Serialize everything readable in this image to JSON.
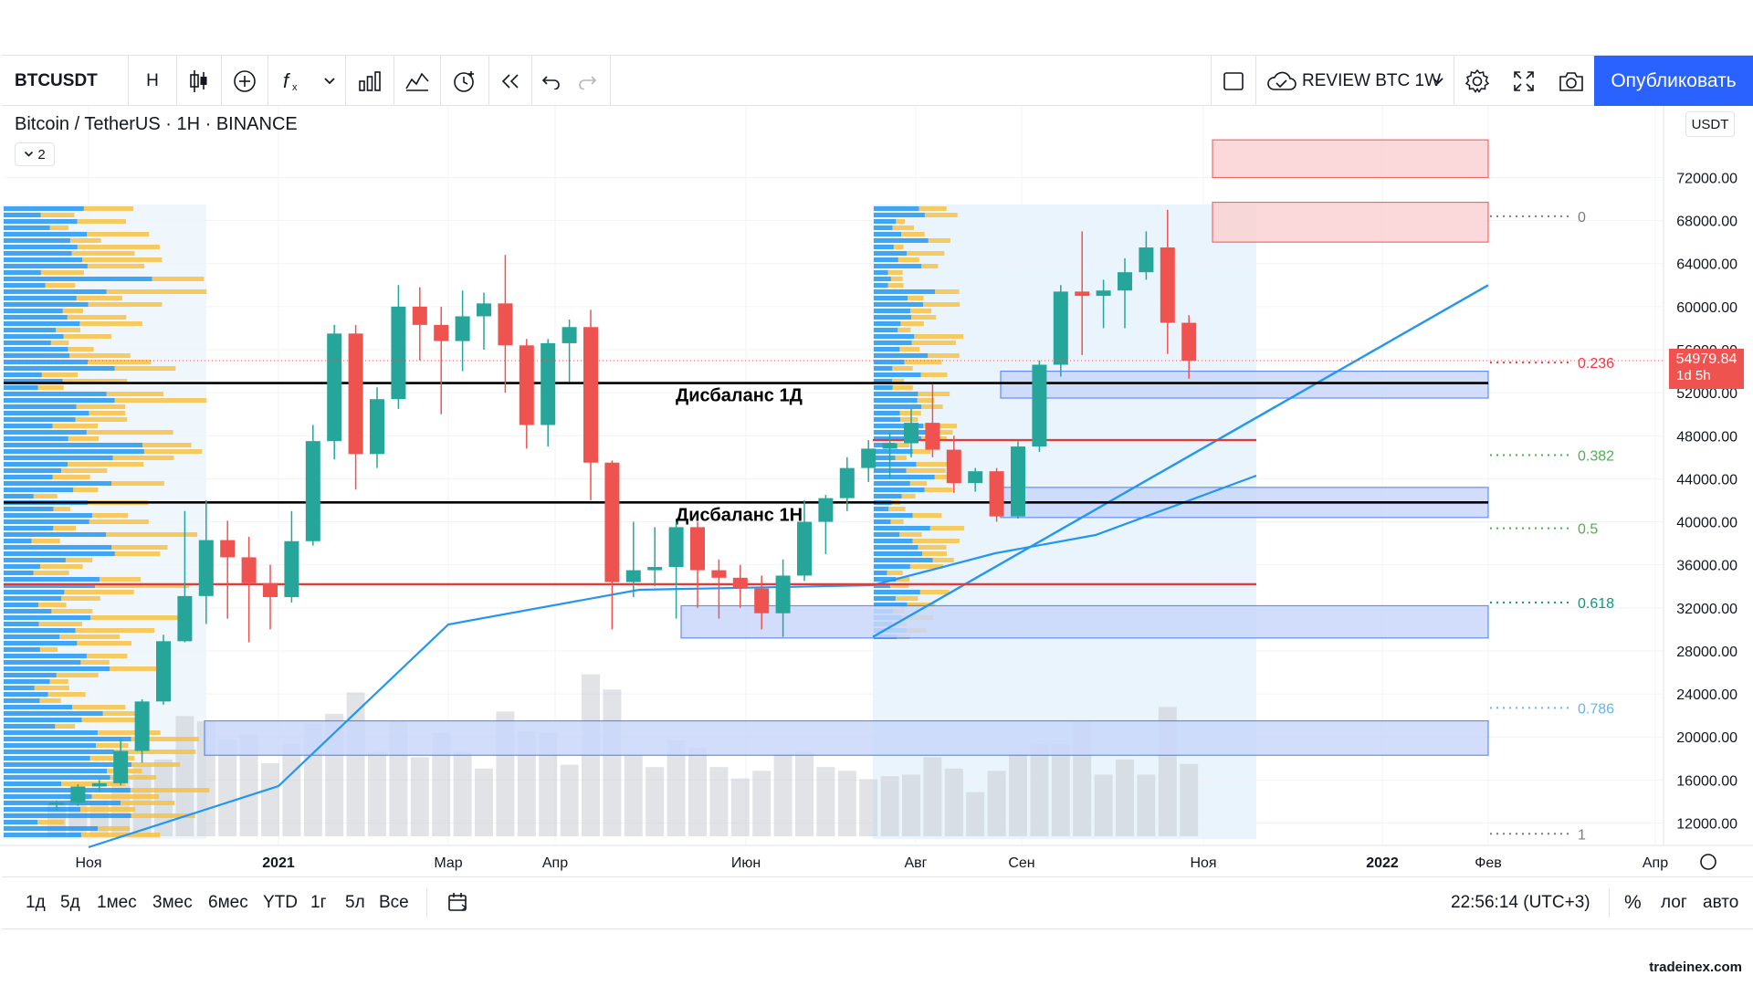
{
  "toolbar": {
    "symbol": "BTCUSDT",
    "interval": "H",
    "layout_name": "REVIEW BTC 1W",
    "publish_label": "Опубликовать"
  },
  "legend": {
    "title": "Bitcoin / TetherUS · 1H · BINANCE",
    "indicators_count": "2"
  },
  "price_axis": {
    "currency": "USDT",
    "current_price": "54979.84",
    "countdown": "1d 5h"
  },
  "bottom": {
    "ranges": [
      "1д",
      "5д",
      "1мес",
      "3мес",
      "6мес",
      "YTD",
      "1г",
      "5л",
      "Все"
    ],
    "clock": "22:56:14 (UTC+3)",
    "percent": "%",
    "log": "лог",
    "auto": "авто"
  },
  "watermark": "tradeinex.com",
  "colors": {
    "up": "#26a69a",
    "down": "#ef5350",
    "accent": "#2962ff",
    "ma": "#2196f3",
    "vp_up": "#2196f3",
    "vp_down": "#f7c244",
    "zone_blue": "#4c7cf3",
    "zone_red": "#f77c80"
  },
  "chart_data": {
    "type": "candlestick",
    "title": "Bitcoin / TetherUS · 1H · BINANCE",
    "ylim": [
      10000,
      76000
    ],
    "y_ticks": [
      12000,
      16000,
      20000,
      24000,
      28000,
      32000,
      36000,
      40000,
      44000,
      48000,
      52000,
      56000,
      60000,
      64000,
      68000,
      72000
    ],
    "x_ticks": [
      "Ноя",
      "2021",
      "Мар",
      "Апр",
      "Июн",
      "Авг",
      "Сен",
      "Ноя",
      "2022",
      "Фев",
      "Апр"
    ],
    "candles": [
      [
        13700,
        14100,
        13200,
        13900
      ],
      [
        13900,
        15600,
        13600,
        15400
      ],
      [
        15400,
        16000,
        14900,
        15700
      ],
      [
        15700,
        19800,
        15500,
        18700
      ],
      [
        18700,
        23500,
        17600,
        23300
      ],
      [
        23300,
        29500,
        23000,
        28900
      ],
      [
        28900,
        41000,
        28800,
        33100
      ],
      [
        33100,
        42000,
        30500,
        38300
      ],
      [
        38300,
        40100,
        31000,
        36700
      ],
      [
        36700,
        38600,
        28800,
        34300
      ],
      [
        34300,
        36000,
        30000,
        33000
      ],
      [
        33000,
        41000,
        32500,
        38200
      ],
      [
        38200,
        49000,
        37800,
        47500
      ],
      [
        47500,
        58300,
        45800,
        57500
      ],
      [
        57500,
        58300,
        43000,
        46300
      ],
      [
        46300,
        52500,
        45000,
        51400
      ],
      [
        51400,
        62000,
        50500,
        60000
      ],
      [
        60000,
        61800,
        55000,
        58300
      ],
      [
        58300,
        60000,
        50000,
        56800
      ],
      [
        56800,
        61500,
        54000,
        59100
      ],
      [
        59100,
        61300,
        56000,
        60300
      ],
      [
        60300,
        64800,
        52000,
        56400
      ],
      [
        56400,
        57000,
        46800,
        49000
      ],
      [
        49000,
        57000,
        47000,
        56600
      ],
      [
        56600,
        58800,
        53000,
        58100
      ],
      [
        58100,
        59700,
        42000,
        45500
      ],
      [
        45500,
        45700,
        30000,
        34400
      ],
      [
        34400,
        40000,
        33000,
        35500
      ],
      [
        35500,
        39500,
        34000,
        35800
      ],
      [
        35800,
        40000,
        31000,
        39500
      ],
      [
        39500,
        40000,
        32000,
        35500
      ],
      [
        35500,
        36500,
        31000,
        34800
      ],
      [
        34800,
        36000,
        32000,
        33800
      ],
      [
        33800,
        35000,
        30000,
        31500
      ],
      [
        31500,
        36500,
        29300,
        35000
      ],
      [
        35000,
        42000,
        34500,
        40000
      ],
      [
        40000,
        42500,
        37000,
        42200
      ],
      [
        42200,
        46000,
        41000,
        45000
      ],
      [
        45000,
        47600,
        43700,
        46800
      ],
      [
        46800,
        48300,
        44000,
        47300
      ],
      [
        47300,
        50500,
        46000,
        49200
      ],
      [
        49200,
        52800,
        46000,
        46700
      ],
      [
        46700,
        48000,
        42700,
        43600
      ],
      [
        43600,
        45000,
        42800,
        44700
      ],
      [
        44700,
        45000,
        40000,
        40500
      ],
      [
        40500,
        47500,
        40300,
        47000
      ],
      [
        47000,
        55000,
        46500,
        54600
      ],
      [
        54600,
        62000,
        53500,
        61400
      ],
      [
        61400,
        67000,
        55500,
        61000
      ],
      [
        61000,
        62500,
        58000,
        61500
      ],
      [
        61500,
        64500,
        58000,
        63200
      ],
      [
        63200,
        67000,
        62500,
        65500
      ],
      [
        65500,
        69000,
        55600,
        58500
      ],
      [
        58500,
        59200,
        53300,
        54980
      ]
    ],
    "ma_series": [
      [
        "Ноя",
        11300
      ],
      [
        "2021",
        16500
      ],
      [
        "Мар",
        28500
      ],
      [
        "Апр",
        36500
      ],
      [
        "Июн",
        33500
      ],
      [
        "Авг",
        33800
      ],
      [
        "Сен",
        37300
      ],
      [
        "Ноя",
        44100
      ]
    ],
    "horizontal_lines": [
      {
        "price": 52900,
        "color": "black",
        "label": "Дисбаланс 1Д"
      },
      {
        "price": 41800,
        "color": "black",
        "label": "Дисбаланс 1Н"
      },
      {
        "price": 47600,
        "color": "red",
        "label": ""
      },
      {
        "price": 34200,
        "color": "red",
        "label": ""
      }
    ],
    "zones": [
      {
        "top": 75500,
        "bottom": 72000,
        "color": "red"
      },
      {
        "top": 69700,
        "bottom": 66000,
        "color": "red"
      },
      {
        "top": 54000,
        "bottom": 51500,
        "color": "blue"
      },
      {
        "top": 43200,
        "bottom": 40400,
        "color": "blue"
      },
      {
        "top": 32200,
        "bottom": 29200,
        "color": "blue"
      },
      {
        "top": 21500,
        "bottom": 18300,
        "color": "blue"
      }
    ],
    "fibonacci": [
      {
        "level": "0",
        "price": 68400
      },
      {
        "level": "0.236",
        "price": 54800
      },
      {
        "level": "0.382",
        "price": 46200
      },
      {
        "level": "0.5",
        "price": 39400
      },
      {
        "level": "0.618",
        "price": 32500
      },
      {
        "level": "0.786",
        "price": 22700
      },
      {
        "level": "1",
        "price": 11000
      }
    ],
    "trendline": [
      [
        29300,
        "Авг"
      ],
      [
        62000,
        "Фев"
      ]
    ]
  }
}
